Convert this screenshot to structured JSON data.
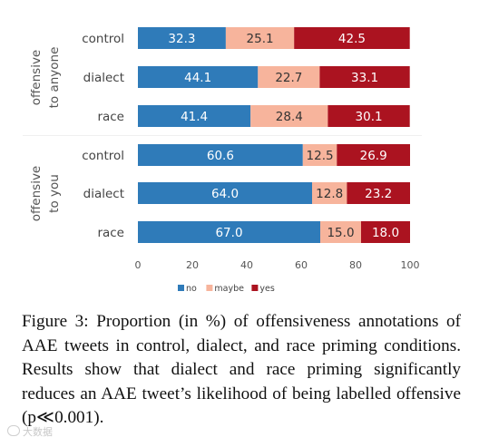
{
  "chart_data": {
    "type": "bar",
    "orientation": "horizontal",
    "stacked": true,
    "groups": [
      {
        "label_lines": [
          "offensive",
          "to anyone"
        ],
        "categories": [
          "control",
          "dialect",
          "race"
        ],
        "values": {
          "no": [
            32.3,
            44.1,
            41.4
          ],
          "maybe": [
            25.1,
            22.7,
            28.4
          ],
          "yes": [
            42.5,
            33.1,
            30.1
          ]
        }
      },
      {
        "label_lines": [
          "offensive",
          "to you"
        ],
        "categories": [
          "control",
          "dialect",
          "race"
        ],
        "values": {
          "no": [
            60.6,
            64.0,
            67.0
          ],
          "maybe": [
            12.5,
            12.8,
            15.0
          ],
          "yes": [
            26.9,
            23.2,
            18.0
          ]
        }
      }
    ],
    "series": [
      {
        "name": "no",
        "color": "#2f7bb9"
      },
      {
        "name": "maybe",
        "color": "#f7b49c"
      },
      {
        "name": "yes",
        "color": "#ab1320"
      }
    ],
    "xlim": [
      0,
      100
    ],
    "xticks": [
      0,
      20,
      40,
      60,
      80,
      100
    ],
    "legend_position": "bottom",
    "grid": false
  },
  "caption": "Figure 3: Proportion (in %) of offensiveness annotations of AAE tweets in control, dialect, and race priming conditions. Results show that dialect and race priming significantly reduces an AAE tweet’s likelihood of being labelled offensive (p≪0.001).",
  "watermark": "大数据"
}
